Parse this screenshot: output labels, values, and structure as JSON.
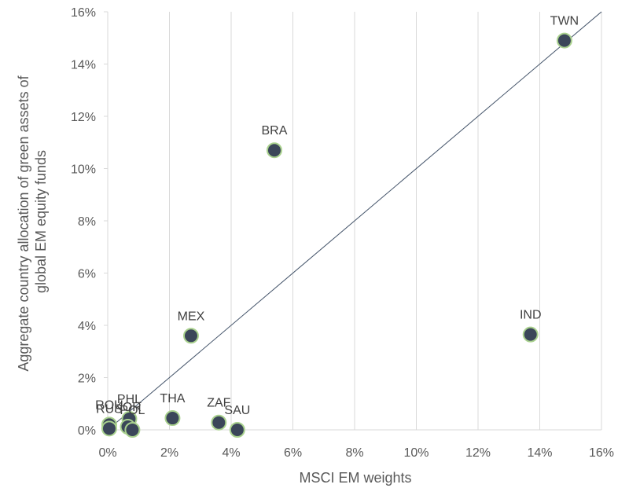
{
  "chart_data": {
    "type": "scatter",
    "xlabel": "MSCI EM weights",
    "ylabel_lines": [
      "Aggregate country allocation of green assets  of",
      "global EM equity funds"
    ],
    "xlim": [
      0,
      16
    ],
    "ylim": [
      0,
      16
    ],
    "x_ticks": [
      0,
      2,
      4,
      6,
      8,
      10,
      12,
      14,
      16
    ],
    "y_ticks": [
      0,
      2,
      4,
      6,
      8,
      10,
      12,
      14,
      16
    ],
    "x_tick_labels": [
      "0%",
      "2%",
      "4%",
      "6%",
      "8%",
      "10%",
      "12%",
      "14%",
      "16%"
    ],
    "y_tick_labels": [
      "0%",
      "2%",
      "4%",
      "6%",
      "8%",
      "10%",
      "12%",
      "14%",
      "16%"
    ],
    "grid": "vertical",
    "reference_line": {
      "from": [
        0,
        0
      ],
      "to": [
        16,
        16
      ]
    },
    "points": [
      {
        "label": "TWN",
        "x": 14.8,
        "y": 14.9
      },
      {
        "label": "BRA",
        "x": 5.4,
        "y": 10.7
      },
      {
        "label": "IND",
        "x": 13.7,
        "y": 3.65
      },
      {
        "label": "MEX",
        "x": 2.7,
        "y": 3.6
      },
      {
        "label": "THA",
        "x": 2.1,
        "y": 0.45
      },
      {
        "label": "ZAF",
        "x": 3.6,
        "y": 0.28
      },
      {
        "label": "SAU",
        "x": 4.2,
        "y": 0.0
      },
      {
        "label": "PHL",
        "x": 0.7,
        "y": 0.42
      },
      {
        "label": "KOR",
        "x": 0.65,
        "y": 0.12
      },
      {
        "label": "POL",
        "x": 0.8,
        "y": 0.0
      },
      {
        "label": "ROU",
        "x": 0.05,
        "y": 0.2
      },
      {
        "label": "RUS",
        "x": 0.05,
        "y": 0.05
      }
    ],
    "marker_fill": "#3b4659",
    "marker_stroke": "#a9d18e",
    "line_color": "#44546a",
    "grid_color": "#d9d9d9"
  }
}
